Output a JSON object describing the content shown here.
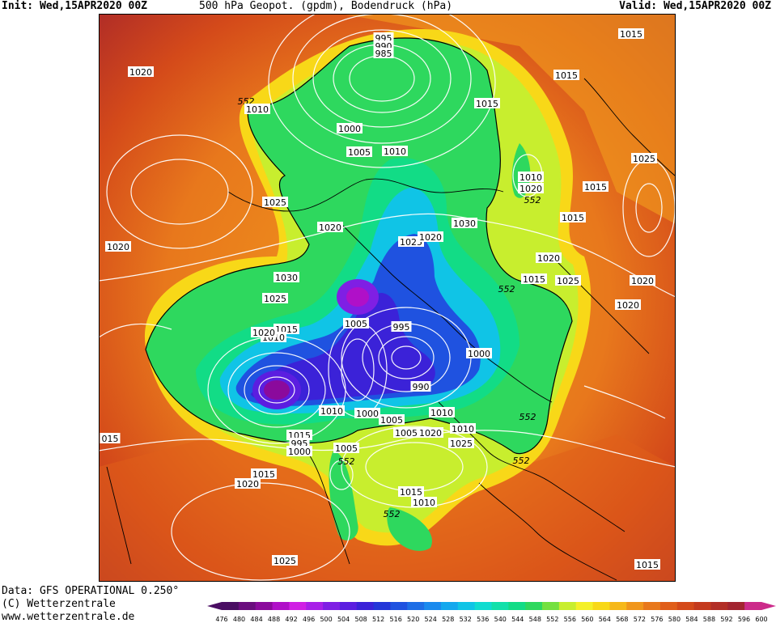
{
  "header": {
    "init": "Init: Wed,15APR2020 00Z",
    "title": "500 hPa Geopot. (gpdm), Bodendruck (hPa)",
    "valid": "Valid: Wed,15APR2020 00Z"
  },
  "footer": {
    "source": "Data: GFS OPERATIONAL 0.250°",
    "copyright": "(C) Wetterzentrale",
    "url": "www.wetterzentrale.de"
  },
  "legend": {
    "ticks": [
      "476",
      "480",
      "484",
      "488",
      "492",
      "496",
      "500",
      "504",
      "508",
      "512",
      "516",
      "520",
      "524",
      "528",
      "532",
      "536",
      "540",
      "544",
      "548",
      "552",
      "556",
      "560",
      "564",
      "568",
      "572",
      "576",
      "580",
      "584",
      "588",
      "592",
      "596",
      "600"
    ],
    "colors": [
      "#4a0e63",
      "#6a0d7e",
      "#8b0a9c",
      "#b010c8",
      "#d020e4",
      "#a820e8",
      "#7f1fe4",
      "#5b1ee0",
      "#3b22d8",
      "#2436d8",
      "#1f52e0",
      "#1e6ee6",
      "#1a8aee",
      "#14a8ee",
      "#10c4e6",
      "#10dcd0",
      "#12e0aa",
      "#12dc86",
      "#2ed85e",
      "#74e040",
      "#c8ee2e",
      "#f4f028",
      "#f8d818",
      "#f6b81a",
      "#f0961c",
      "#e8781c",
      "#e05e1a",
      "#d44a1a",
      "#c43a1e",
      "#b22e26",
      "#a22430",
      "#cc2a8a"
    ]
  },
  "map": {
    "isobar_labels": [
      "995",
      "990",
      "985",
      "1015",
      "1020",
      "1015",
      "552",
      "1010",
      "1015",
      "1000",
      "1005",
      "1010",
      "1025",
      "1010",
      "1020",
      "552",
      "1025",
      "1015",
      "1015",
      "1030",
      "1025",
      "1020",
      "1020",
      "1020",
      "1020",
      "1015",
      "552",
      "1030",
      "1025",
      "1025",
      "1020",
      "1020",
      "1015",
      "1010",
      "1020",
      "1005",
      "995",
      "1000",
      "1010",
      "990",
      "1005",
      "1010",
      "1000",
      "1005",
      "1010",
      "1015",
      "995",
      "1000",
      "1005",
      "552",
      "552",
      "1020",
      "1025",
      "015",
      "552",
      "1015",
      "1020",
      "1015",
      "1010",
      "552",
      "1025",
      "1015"
    ],
    "contour_label": "552"
  }
}
